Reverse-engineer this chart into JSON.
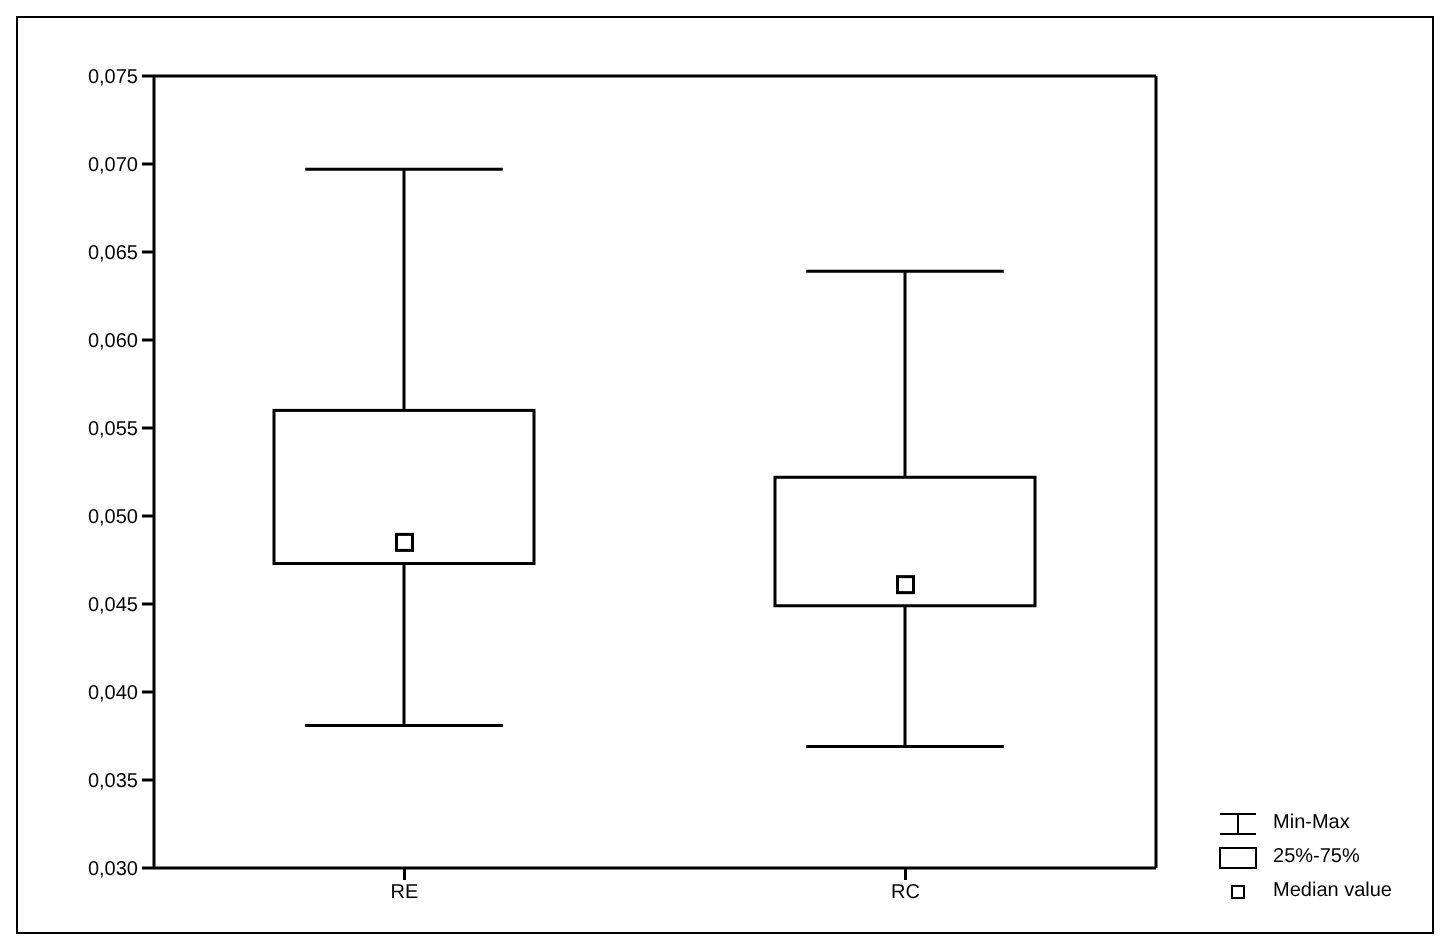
{
  "chart_data": {
    "type": "box",
    "categories": [
      "RE",
      "RC"
    ],
    "boxes": [
      {
        "low": 0.0381,
        "q1": 0.0473,
        "median": 0.0485,
        "q3": 0.056,
        "high": 0.0697
      },
      {
        "low": 0.0369,
        "q1": 0.0449,
        "median": 0.0461,
        "q3": 0.0522,
        "high": 0.0639
      }
    ],
    "color": "#000000",
    "ylim": [
      0.03,
      0.075
    ],
    "yticks": [
      {
        "value": 0.03,
        "label": "0,030"
      },
      {
        "value": 0.035,
        "label": "0,035"
      },
      {
        "value": 0.04,
        "label": "0,040"
      },
      {
        "value": 0.045,
        "label": "0,045"
      },
      {
        "value": 0.05,
        "label": "0,050"
      },
      {
        "value": 0.055,
        "label": "0,055"
      },
      {
        "value": 0.06,
        "label": "0,060"
      },
      {
        "value": 0.065,
        "label": "0,065"
      },
      {
        "value": 0.07,
        "label": "0,070"
      },
      {
        "value": 0.075,
        "label": "0,075"
      }
    ],
    "marker": "square",
    "annotations": [
      "Min-Max",
      "25%-75%",
      "Median value"
    ],
    "grid": false
  }
}
